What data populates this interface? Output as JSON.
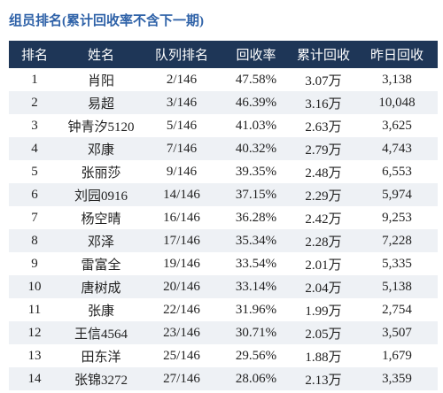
{
  "title": "组员排名(累计回收率不含下一期)",
  "table": {
    "header": [
      "排名",
      "姓名",
      "队列排名",
      "回收率",
      "累计回收",
      "昨日回收"
    ],
    "rows": [
      [
        "1",
        "肖阳",
        "2/146",
        "47.58%",
        "3.07万",
        "3,138"
      ],
      [
        "2",
        "易超",
        "3/146",
        "46.39%",
        "3.16万",
        "10,048"
      ],
      [
        "3",
        "钟青汐5120",
        "5/146",
        "41.03%",
        "2.63万",
        "3,625"
      ],
      [
        "4",
        "邓康",
        "7/146",
        "40.32%",
        "2.79万",
        "4,743"
      ],
      [
        "5",
        "张丽莎",
        "9/146",
        "39.35%",
        "2.48万",
        "6,553"
      ],
      [
        "6",
        "刘园0916",
        "14/146",
        "37.15%",
        "2.29万",
        "5,974"
      ],
      [
        "7",
        "杨空晴",
        "16/146",
        "36.28%",
        "2.42万",
        "9,253"
      ],
      [
        "8",
        "邓泽",
        "17/146",
        "35.34%",
        "2.28万",
        "7,228"
      ],
      [
        "9",
        "雷富全",
        "19/146",
        "33.54%",
        "2.01万",
        "5,335"
      ],
      [
        "10",
        "唐树成",
        "20/146",
        "33.14%",
        "2.04万",
        "5,138"
      ],
      [
        "11",
        "张康",
        "22/146",
        "31.96%",
        "1.99万",
        "2,754"
      ],
      [
        "12",
        "王信4564",
        "23/146",
        "30.71%",
        "2.05万",
        "3,507"
      ],
      [
        "13",
        "田东洋",
        "25/146",
        "29.56%",
        "1.88万",
        "1,679"
      ],
      [
        "14",
        "张锦3272",
        "27/146",
        "28.06%",
        "2.13万",
        "3,359"
      ]
    ]
  }
}
